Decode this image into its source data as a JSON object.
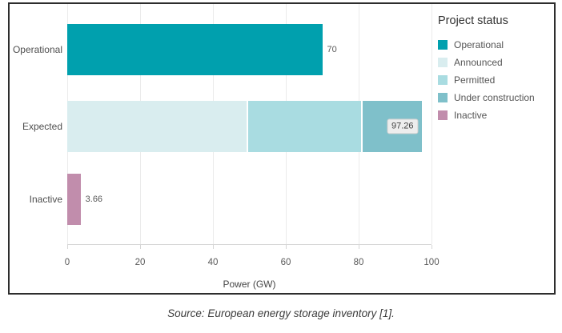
{
  "chart_data": {
    "type": "bar",
    "orientation": "horizontal",
    "stacked": true,
    "xlabel": "Power (GW)",
    "xlim": [
      0,
      100
    ],
    "x_ticks": [
      0,
      20,
      40,
      60,
      80,
      100
    ],
    "grid": "vertical",
    "categories": [
      "Operational",
      "Expected",
      "Inactive"
    ],
    "totals": [
      70,
      97.26,
      3.66
    ],
    "rows": [
      {
        "category": "Operational",
        "segments": [
          {
            "series": "Operational",
            "value": 70
          }
        ],
        "value_label": {
          "text": "70",
          "style": "outside"
        }
      },
      {
        "category": "Expected",
        "segments": [
          {
            "series": "Announced",
            "value": 49.6
          },
          {
            "series": "Permitted",
            "value": 31.6
          },
          {
            "series": "Under construction",
            "value": 16.06
          }
        ],
        "value_label": {
          "text": "97.26",
          "style": "boxed"
        }
      },
      {
        "category": "Inactive",
        "segments": [
          {
            "series": "Inactive",
            "value": 3.66
          }
        ],
        "value_label": {
          "text": "3.66",
          "style": "outside"
        }
      }
    ],
    "colors": {
      "Operational": "#00a0ae",
      "Announced": "#d9edef",
      "Permitted": "#a9dce1",
      "Under construction": "#7fc0ca",
      "Inactive": "#c18dac"
    },
    "legend": {
      "title": "Project status",
      "position": "right",
      "entries": [
        {
          "label": "Operational",
          "color": "#00a0ae"
        },
        {
          "label": "Announced",
          "color": "#d9edef"
        },
        {
          "label": "Permitted",
          "color": "#a9dce1"
        },
        {
          "label": "Under construction",
          "color": "#7fc0ca"
        },
        {
          "label": "Inactive",
          "color": "#c18dac"
        }
      ]
    }
  },
  "source_note": "Source: European energy storage inventory [1]."
}
